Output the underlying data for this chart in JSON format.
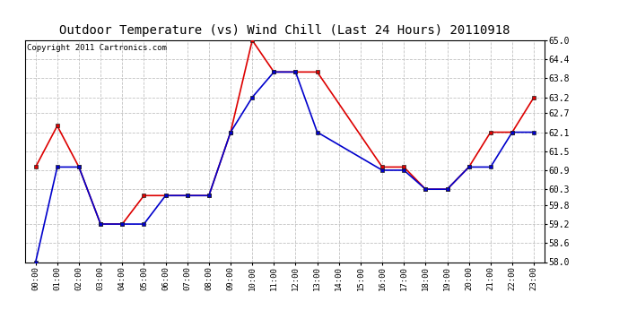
{
  "title": "Outdoor Temperature (vs) Wind Chill (Last 24 Hours) 20110918",
  "copyright": "Copyright 2011 Cartronics.com",
  "ylim": [
    58.0,
    65.0
  ],
  "yticks": [
    58.0,
    58.6,
    59.2,
    59.8,
    60.3,
    60.9,
    61.5,
    62.1,
    62.7,
    63.2,
    63.8,
    64.4,
    65.0
  ],
  "hours": [
    "00:00",
    "01:00",
    "02:00",
    "03:00",
    "04:00",
    "05:00",
    "06:00",
    "07:00",
    "08:00",
    "09:00",
    "10:00",
    "11:00",
    "12:00",
    "13:00",
    "14:00",
    "15:00",
    "16:00",
    "17:00",
    "18:00",
    "19:00",
    "20:00",
    "21:00",
    "22:00",
    "23:00"
  ],
  "red_x": [
    0,
    1,
    2,
    3,
    4,
    5,
    6,
    7,
    8,
    9,
    10,
    11,
    12,
    13,
    16,
    17,
    18,
    19,
    20,
    21,
    22,
    23
  ],
  "red_y": [
    61.0,
    62.3,
    61.0,
    59.2,
    59.2,
    60.1,
    60.1,
    60.1,
    60.1,
    62.1,
    65.0,
    64.0,
    64.0,
    64.0,
    61.0,
    61.0,
    60.3,
    60.3,
    61.0,
    62.1,
    62.1,
    63.2
  ],
  "blue_x": [
    0,
    1,
    2,
    3,
    4,
    5,
    6,
    7,
    8,
    9,
    10,
    11,
    12,
    13,
    16,
    17,
    18,
    19,
    20,
    21,
    22,
    23
  ],
  "blue_y": [
    58.0,
    61.0,
    61.0,
    59.2,
    59.2,
    59.2,
    60.1,
    60.1,
    60.1,
    62.1,
    63.2,
    64.0,
    64.0,
    62.1,
    60.9,
    60.9,
    60.3,
    60.3,
    61.0,
    61.0,
    62.1,
    62.1
  ],
  "background_color": "#ffffff",
  "plot_bg_color": "#ffffff",
  "grid_color": "#bbbbbb",
  "red_color": "#dd0000",
  "blue_color": "#0000cc",
  "title_fontsize": 10,
  "copyright_fontsize": 6.5
}
